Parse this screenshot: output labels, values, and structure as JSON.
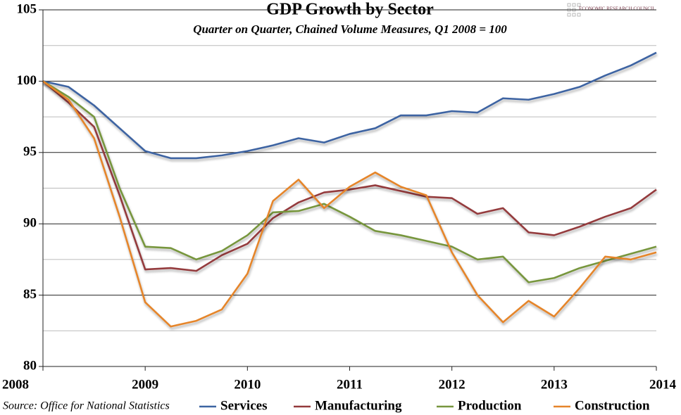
{
  "chart_data": {
    "type": "line",
    "title": "GDP Growth by Sector",
    "subtitle": "Quarter on Quarter, Chained Volume Measures, Q1 2008 = 100",
    "source": "Source: Office for National Statistics",
    "logo_text": "ECONOMIC RESEARCH COUNCIL",
    "x": [
      2008,
      2008.25,
      2008.5,
      2008.75,
      2009,
      2009.25,
      2009.5,
      2009.75,
      2010,
      2010.25,
      2010.5,
      2010.75,
      2011,
      2011.25,
      2011.5,
      2011.75,
      2012,
      2012.25,
      2012.5,
      2012.75,
      2013,
      2013.25,
      2013.5,
      2013.75,
      2014
    ],
    "xlim": [
      2008,
      2014
    ],
    "xticks": [
      2008,
      2009,
      2010,
      2011,
      2012,
      2013,
      2014
    ],
    "ylim": [
      80,
      105
    ],
    "yticks": [
      80,
      85,
      90,
      95,
      100,
      105
    ],
    "yminorgrid": [
      82.5,
      87.5,
      92.5,
      97.5,
      102.5
    ],
    "grid": true,
    "legend": "bottom",
    "series": [
      {
        "name": "Services",
        "color": "#3d64a2",
        "values": [
          100,
          99.6,
          98.3,
          96.7,
          95.1,
          94.6,
          94.6,
          94.8,
          95.1,
          95.5,
          96.0,
          95.7,
          96.3,
          96.7,
          97.6,
          97.6,
          97.9,
          97.8,
          98.8,
          98.7,
          99.1,
          99.6,
          100.4,
          101.1,
          102.0
        ]
      },
      {
        "name": "Manufacturing",
        "color": "#943a3c",
        "values": [
          100,
          98.5,
          96.8,
          92.0,
          86.8,
          86.9,
          86.7,
          87.8,
          88.6,
          90.4,
          91.5,
          92.2,
          92.4,
          92.7,
          92.3,
          91.9,
          91.8,
          90.7,
          91.1,
          89.4,
          89.2,
          89.8,
          90.5,
          91.1,
          92.4
        ]
      },
      {
        "name": "Production",
        "color": "#77963e",
        "values": [
          100,
          98.9,
          97.5,
          92.5,
          88.4,
          88.3,
          87.5,
          88.1,
          89.2,
          90.8,
          90.9,
          91.4,
          90.5,
          89.5,
          89.2,
          88.8,
          88.4,
          87.5,
          87.7,
          85.9,
          86.2,
          86.9,
          87.4,
          87.9,
          88.4
        ]
      },
      {
        "name": "Construction",
        "color": "#e5852b",
        "values": [
          100,
          98.7,
          96.0,
          90.5,
          84.5,
          82.8,
          83.2,
          84.0,
          86.5,
          91.6,
          93.1,
          91.1,
          92.6,
          93.6,
          92.6,
          92.0,
          88.0,
          85.0,
          83.1,
          84.6,
          83.5,
          85.5,
          87.7,
          87.5,
          88.0
        ]
      }
    ]
  }
}
